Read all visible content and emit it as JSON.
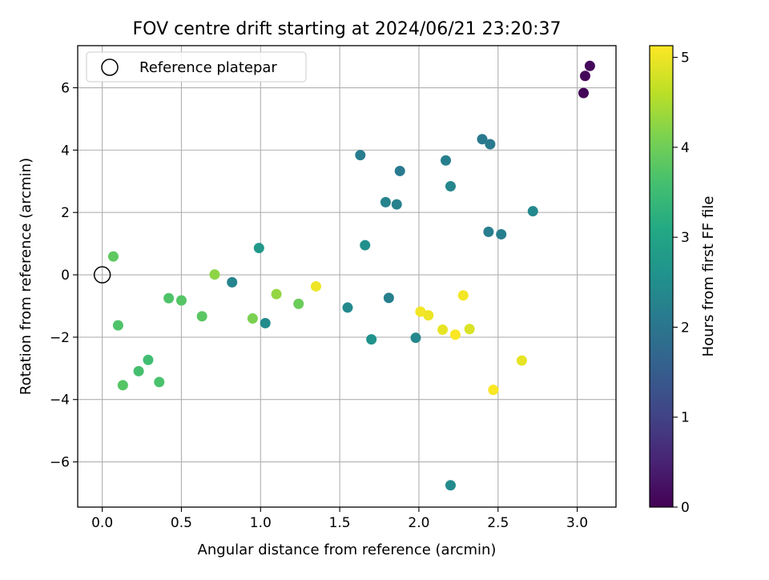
{
  "chart_data": {
    "type": "scatter",
    "title": "FOV centre drift starting at 2024/06/21 23:20:37",
    "xlabel": "Angular distance from reference (arcmin)",
    "ylabel": "Rotation from reference (arcmin)",
    "xlim": [
      -0.155,
      3.245
    ],
    "ylim": [
      -7.45,
      7.35
    ],
    "xticks": [
      0.0,
      0.5,
      1.0,
      1.5,
      2.0,
      2.5,
      3.0
    ],
    "xtick_labels": [
      "0.0",
      "0.5",
      "1.0",
      "1.5",
      "2.0",
      "2.5",
      "3.0"
    ],
    "yticks": [
      -6,
      -4,
      -2,
      0,
      2,
      4,
      6
    ],
    "ytick_labels": [
      "−6",
      "−4",
      "−2",
      "0",
      "2",
      "4",
      "6"
    ],
    "grid": true,
    "colormap": "viridis",
    "colorbar": {
      "label": "Hours from first FF file",
      "range": [
        0,
        5.13
      ],
      "ticks": [
        0,
        1,
        2,
        3,
        4,
        5
      ],
      "tick_labels": [
        "0",
        "1",
        "2",
        "3",
        "4",
        "5"
      ]
    },
    "legend": {
      "position": "top-left",
      "entries": [
        {
          "label": "Reference platepar",
          "marker": "open-circle"
        }
      ]
    },
    "reference_point": {
      "x": 0.0,
      "y": 0.0
    },
    "points": [
      {
        "x": 3.04,
        "y": 5.83,
        "c": 0.05
      },
      {
        "x": 3.05,
        "y": 6.38,
        "c": 0.08
      },
      {
        "x": 3.08,
        "y": 6.7,
        "c": 0.1
      },
      {
        "x": 1.63,
        "y": 3.84,
        "c": 2.15
      },
      {
        "x": 1.88,
        "y": 3.33,
        "c": 2.1
      },
      {
        "x": 2.17,
        "y": 3.67,
        "c": 2.2
      },
      {
        "x": 2.2,
        "y": 2.84,
        "c": 2.35
      },
      {
        "x": 2.4,
        "y": 4.35,
        "c": 2.05
      },
      {
        "x": 2.45,
        "y": 4.19,
        "c": 2.1
      },
      {
        "x": 1.79,
        "y": 2.33,
        "c": 2.3
      },
      {
        "x": 1.86,
        "y": 2.26,
        "c": 2.25
      },
      {
        "x": 2.72,
        "y": 2.04,
        "c": 2.4
      },
      {
        "x": 2.44,
        "y": 1.38,
        "c": 2.15
      },
      {
        "x": 2.52,
        "y": 1.3,
        "c": 2.2
      },
      {
        "x": 1.66,
        "y": 0.95,
        "c": 2.55
      },
      {
        "x": 0.99,
        "y": 0.86,
        "c": 2.75
      },
      {
        "x": 0.82,
        "y": -0.24,
        "c": 2.3
      },
      {
        "x": 1.03,
        "y": -1.55,
        "c": 2.45
      },
      {
        "x": 1.55,
        "y": -1.05,
        "c": 2.4
      },
      {
        "x": 1.81,
        "y": -0.74,
        "c": 2.2
      },
      {
        "x": 1.7,
        "y": -2.07,
        "c": 2.6
      },
      {
        "x": 1.98,
        "y": -2.02,
        "c": 2.35
      },
      {
        "x": 2.2,
        "y": -6.75,
        "c": 2.45
      },
      {
        "x": 0.07,
        "y": 0.59,
        "c": 3.85
      },
      {
        "x": 0.1,
        "y": -1.62,
        "c": 3.7
      },
      {
        "x": 0.13,
        "y": -3.54,
        "c": 3.75
      },
      {
        "x": 0.23,
        "y": -3.09,
        "c": 3.6
      },
      {
        "x": 0.29,
        "y": -2.73,
        "c": 3.55
      },
      {
        "x": 0.36,
        "y": -3.44,
        "c": 3.65
      },
      {
        "x": 0.42,
        "y": -0.75,
        "c": 3.7
      },
      {
        "x": 0.5,
        "y": -0.82,
        "c": 3.75
      },
      {
        "x": 0.63,
        "y": -1.33,
        "c": 3.8
      },
      {
        "x": 0.71,
        "y": 0.01,
        "c": 4.25
      },
      {
        "x": 0.95,
        "y": -1.4,
        "c": 4.1
      },
      {
        "x": 1.1,
        "y": -0.62,
        "c": 4.3
      },
      {
        "x": 1.24,
        "y": -0.93,
        "c": 3.95
      },
      {
        "x": 1.35,
        "y": -0.37,
        "c": 5.0
      },
      {
        "x": 2.01,
        "y": -1.18,
        "c": 5.05
      },
      {
        "x": 2.06,
        "y": -1.3,
        "c": 5.0
      },
      {
        "x": 2.15,
        "y": -1.76,
        "c": 4.95
      },
      {
        "x": 2.23,
        "y": -1.92,
        "c": 5.1
      },
      {
        "x": 2.28,
        "y": -0.66,
        "c": 5.05
      },
      {
        "x": 2.32,
        "y": -1.74,
        "c": 4.85
      },
      {
        "x": 2.47,
        "y": -3.69,
        "c": 5.1
      },
      {
        "x": 2.65,
        "y": -2.75,
        "c": 4.95
      }
    ]
  }
}
